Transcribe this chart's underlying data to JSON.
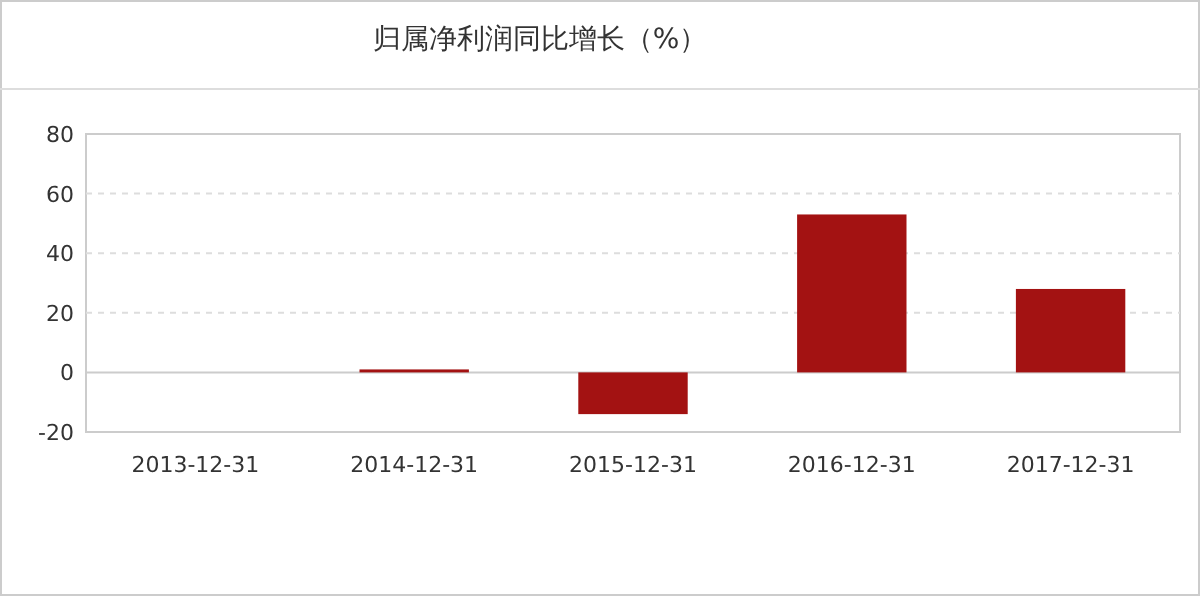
{
  "chart_data": {
    "type": "bar",
    "title": "归属净利润同比增长（%）",
    "categories": [
      "2013-12-31",
      "2014-12-31",
      "2015-12-31",
      "2016-12-31",
      "2017-12-31"
    ],
    "values": [
      null,
      1,
      -14,
      53,
      28
    ],
    "color": "#a31212",
    "ylim": [
      -20,
      80
    ],
    "yticks": [
      -20,
      0,
      20,
      40,
      60,
      80
    ],
    "grid": "y"
  }
}
